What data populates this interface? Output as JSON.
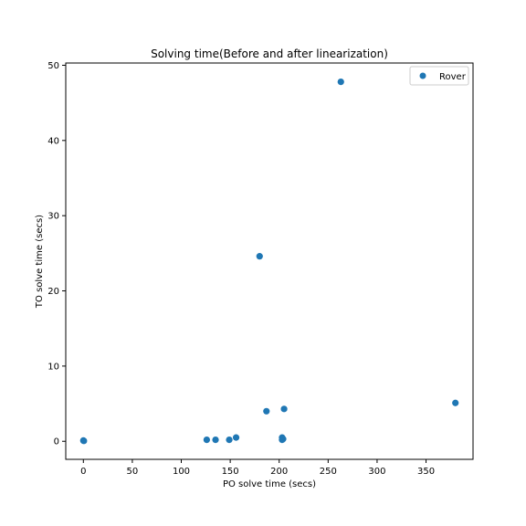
{
  "chart_data": {
    "type": "scatter",
    "title": "Solving time(Before and after linearization)",
    "xlabel": "PO solve time (secs)",
    "ylabel": "TO solve time (secs)",
    "xlim": [
      -18,
      398
    ],
    "ylim": [
      -2.4,
      50.3
    ],
    "xticks": [
      0,
      50,
      100,
      150,
      200,
      250,
      300,
      350
    ],
    "yticks": [
      0,
      10,
      20,
      30,
      40,
      50
    ],
    "grid": false,
    "legend_position": "top-right",
    "series": [
      {
        "name": "Rover",
        "color": "#1f77b4",
        "points": [
          {
            "x": 0,
            "y": 0.1
          },
          {
            "x": 0.5,
            "y": 0.05
          },
          {
            "x": 126,
            "y": 0.2
          },
          {
            "x": 135,
            "y": 0.2
          },
          {
            "x": 149,
            "y": 0.2
          },
          {
            "x": 156,
            "y": 0.5
          },
          {
            "x": 180,
            "y": 24.6
          },
          {
            "x": 187,
            "y": 4.0
          },
          {
            "x": 203,
            "y": 0.2
          },
          {
            "x": 203,
            "y": 0.5
          },
          {
            "x": 204,
            "y": 0.3
          },
          {
            "x": 205,
            "y": 4.3
          },
          {
            "x": 263,
            "y": 47.8
          },
          {
            "x": 380,
            "y": 5.1
          }
        ]
      }
    ]
  }
}
